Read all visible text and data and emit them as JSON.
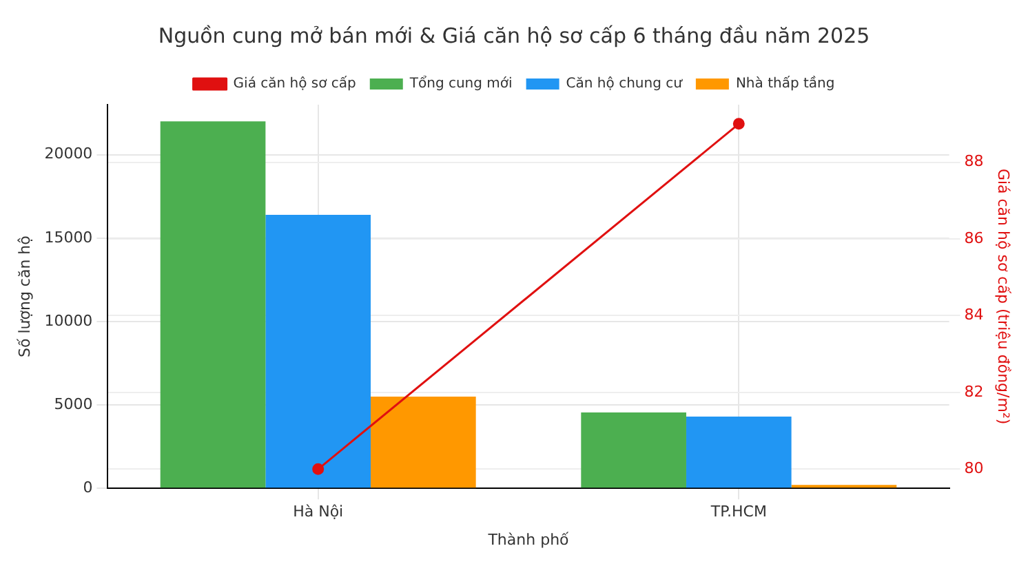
{
  "chart_data": {
    "type": "bar",
    "title": "Nguồn cung mở bán mới & Giá căn hộ sơ cấp 6 tháng đầu năm 2025",
    "xlabel": "Thành phố",
    "ylabel": "Số lượng căn hộ",
    "y2label": "Giá căn hộ sơ cấp (triệu đồng/m²)",
    "categories": [
      "Hà Nội",
      "TP.HCM"
    ],
    "series": [
      {
        "name": "Tổng cung mới",
        "color": "#4caf50",
        "values": [
          22000,
          4550
        ]
      },
      {
        "name": "Căn hộ chung cư",
        "color": "#2196f3",
        "values": [
          16400,
          4300
        ]
      },
      {
        "name": "Nhà thấp tầng",
        "color": "#ff9800",
        "values": [
          5500,
          200
        ]
      },
      {
        "name": "Giá căn hộ sơ cấp",
        "type": "line",
        "axis": "y2",
        "color": "#e01010",
        "values": [
          80,
          89
        ],
        "marker": "circle"
      }
    ],
    "ylim": [
      0,
      23000
    ],
    "yticks": [
      0,
      5000,
      10000,
      15000,
      20000
    ],
    "y2lim": [
      79.5,
      89.5
    ],
    "y2ticks": [
      80,
      82,
      84,
      86,
      88
    ],
    "grid": true,
    "legend": "top"
  }
}
